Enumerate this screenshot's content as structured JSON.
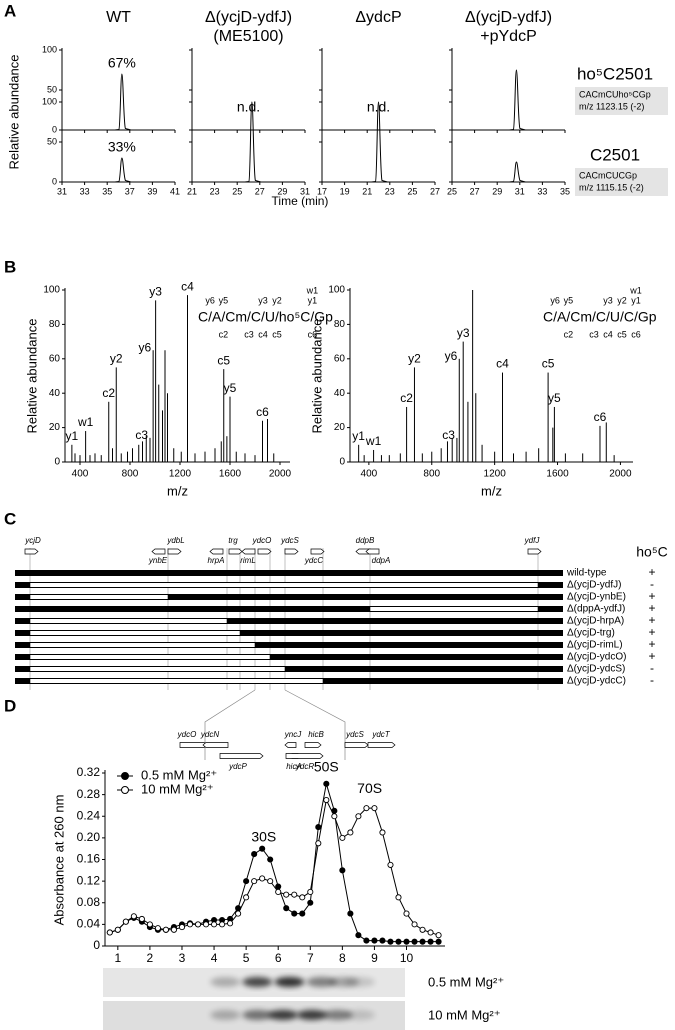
{
  "panel_a": {
    "label": "A",
    "y_label": "Relative abundance",
    "x_label": "Time (min)",
    "ylim": [
      0,
      100
    ],
    "yticks": [
      0,
      50,
      100
    ],
    "columns": [
      {
        "title": [
          "WT"
        ],
        "xlim": [
          31,
          41
        ],
        "xticks": [
          31,
          33,
          35,
          37,
          39,
          41
        ],
        "rows": [
          {
            "peaks": [
              {
                "x": 36.3,
                "y": 70
              }
            ],
            "annotation": "67%"
          },
          {
            "peaks": [
              {
                "x": 36.3,
                "y": 30
              }
            ],
            "annotation": "33%"
          }
        ]
      },
      {
        "title": [
          "Δ(ycjD-ydfJ)",
          "(ME5100)"
        ],
        "xlim": [
          21,
          31
        ],
        "xticks": [
          21,
          23,
          25,
          27,
          29,
          31
        ],
        "rows": [
          {
            "annotation": "n.d."
          },
          {
            "peaks": [
              {
                "x": 26.3,
                "y": 100
              }
            ]
          }
        ]
      },
      {
        "title": [
          "ΔydcP"
        ],
        "xlim": [
          17,
          27
        ],
        "xticks": [
          17,
          19,
          21,
          23,
          25,
          27
        ],
        "rows": [
          {
            "annotation": "n.d."
          },
          {
            "peaks": [
              {
                "x": 22.0,
                "y": 100
              }
            ]
          }
        ]
      },
      {
        "title": [
          "Δ(ycjD-ydfJ)",
          "+pYdcP"
        ],
        "xlim": [
          25,
          35
        ],
        "xticks": [
          25,
          27,
          29,
          31,
          33,
          35
        ],
        "rows": [
          {
            "peaks": [
              {
                "x": 30.7,
                "y": 75
              }
            ]
          },
          {
            "peaks": [
              {
                "x": 30.7,
                "y": 25
              }
            ]
          }
        ]
      }
    ],
    "targets": [
      {
        "name": "ho⁵C2501",
        "sequence": "CACmCUho⁵CGp",
        "mz": "m/z 1123.15 (-2)"
      },
      {
        "name": "C2501",
        "sequence": "CACmCUCGp",
        "mz": "m/z 1115.15 (-2)"
      }
    ]
  },
  "panel_b": {
    "label": "B",
    "y_label": "Relative abundance",
    "x_label": "m/z",
    "xlim": [
      280,
      2080
    ],
    "xticks": [
      400,
      800,
      1200,
      1600,
      2000
    ],
    "ylim": [
      0,
      100
    ],
    "yticks": [
      0,
      20,
      40,
      60,
      80,
      100
    ],
    "spectra": [
      {
        "sequence": "C/A/Cm/C/U/ho⁵C/Gp",
        "top_fragments": [
          "y6",
          "y5",
          "y3",
          "y2",
          "y1",
          "w1"
        ],
        "bottom_fragments": [
          "c2",
          "c3",
          "c4",
          "c5",
          "c6"
        ],
        "peaks": [
          {
            "mz": 335,
            "intensity": 10,
            "label": "y1"
          },
          {
            "mz": 360,
            "intensity": 5
          },
          {
            "mz": 400,
            "intensity": 4
          },
          {
            "mz": 445,
            "intensity": 18,
            "label": "w1"
          },
          {
            "mz": 480,
            "intensity": 4
          },
          {
            "mz": 520,
            "intensity": 5
          },
          {
            "mz": 570,
            "intensity": 4
          },
          {
            "mz": 630,
            "intensity": 35,
            "label": "c2"
          },
          {
            "mz": 660,
            "intensity": 8
          },
          {
            "mz": 690,
            "intensity": 55,
            "label": "y2"
          },
          {
            "mz": 730,
            "intensity": 5
          },
          {
            "mz": 780,
            "intensity": 6
          },
          {
            "mz": 820,
            "intensity": 8
          },
          {
            "mz": 870,
            "intensity": 10
          },
          {
            "mz": 900,
            "intensity": 12
          },
          {
            "mz": 930,
            "intensity": 15
          },
          {
            "mz": 960,
            "intensity": 14,
            "label": "c3"
          },
          {
            "mz": 985,
            "intensity": 65,
            "label": "y6"
          },
          {
            "mz": 1005,
            "intensity": 94,
            "label": "y3"
          },
          {
            "mz": 1030,
            "intensity": 45
          },
          {
            "mz": 1060,
            "intensity": 30
          },
          {
            "mz": 1080,
            "intensity": 65
          },
          {
            "mz": 1100,
            "intensity": 40
          },
          {
            "mz": 1150,
            "intensity": 8
          },
          {
            "mz": 1210,
            "intensity": 6
          },
          {
            "mz": 1260,
            "intensity": 97,
            "label": "c4"
          },
          {
            "mz": 1320,
            "intensity": 5
          },
          {
            "mz": 1400,
            "intensity": 6
          },
          {
            "mz": 1480,
            "intensity": 8
          },
          {
            "mz": 1530,
            "intensity": 12
          },
          {
            "mz": 1550,
            "intensity": 54,
            "label": "c5"
          },
          {
            "mz": 1575,
            "intensity": 15
          },
          {
            "mz": 1600,
            "intensity": 38,
            "label": "y5"
          },
          {
            "mz": 1650,
            "intensity": 6
          },
          {
            "mz": 1720,
            "intensity": 5
          },
          {
            "mz": 1800,
            "intensity": 4
          },
          {
            "mz": 1860,
            "intensity": 24,
            "label": "c6"
          },
          {
            "mz": 1900,
            "intensity": 25
          },
          {
            "mz": 1950,
            "intensity": 5
          }
        ]
      },
      {
        "sequence": "C/A/Cm/C/U/C/Gp",
        "top_fragments": [
          "y6",
          "y5",
          "y3",
          "y2",
          "y1",
          "w1"
        ],
        "bottom_fragments": [
          "c2",
          "c3",
          "c4",
          "c5",
          "c6"
        ],
        "peaks": [
          {
            "mz": 335,
            "intensity": 10,
            "label": "y1"
          },
          {
            "mz": 370,
            "intensity": 4
          },
          {
            "mz": 430,
            "intensity": 7,
            "label": "w1"
          },
          {
            "mz": 480,
            "intensity": 4
          },
          {
            "mz": 530,
            "intensity": 4
          },
          {
            "mz": 600,
            "intensity": 5
          },
          {
            "mz": 640,
            "intensity": 32,
            "label": "c2"
          },
          {
            "mz": 690,
            "intensity": 55,
            "label": "y2"
          },
          {
            "mz": 740,
            "intensity": 5
          },
          {
            "mz": 800,
            "intensity": 6
          },
          {
            "mz": 860,
            "intensity": 8
          },
          {
            "mz": 900,
            "intensity": 12
          },
          {
            "mz": 930,
            "intensity": 14
          },
          {
            "mz": 960,
            "intensity": 14,
            "label": "c3"
          },
          {
            "mz": 975,
            "intensity": 60,
            "label": "y6"
          },
          {
            "mz": 1000,
            "intensity": 70,
            "label": "y3"
          },
          {
            "mz": 1030,
            "intensity": 35
          },
          {
            "mz": 1060,
            "intensity": 100
          },
          {
            "mz": 1080,
            "intensity": 40
          },
          {
            "mz": 1120,
            "intensity": 10
          },
          {
            "mz": 1200,
            "intensity": 6
          },
          {
            "mz": 1250,
            "intensity": 52,
            "label": "c4"
          },
          {
            "mz": 1320,
            "intensity": 5
          },
          {
            "mz": 1400,
            "intensity": 6
          },
          {
            "mz": 1480,
            "intensity": 8
          },
          {
            "mz": 1540,
            "intensity": 52,
            "label": "c5"
          },
          {
            "mz": 1570,
            "intensity": 20
          },
          {
            "mz": 1580,
            "intensity": 32,
            "label": "y5"
          },
          {
            "mz": 1650,
            "intensity": 5
          },
          {
            "mz": 1760,
            "intensity": 5
          },
          {
            "mz": 1870,
            "intensity": 21,
            "label": "c6"
          },
          {
            "mz": 1910,
            "intensity": 23
          },
          {
            "mz": 1960,
            "intensity": 4
          }
        ]
      }
    ]
  },
  "panel_c": {
    "label": "C",
    "genes": [
      "ycjD",
      "ynbE",
      "ydbL",
      "hrpA",
      "trg",
      "rimL",
      "ydcO",
      "ydcS",
      "ydcC",
      "ddpB",
      "ddpA",
      "ydfJ"
    ],
    "phenotype_header": "ho⁵C",
    "strains": [
      {
        "name": "wild-type",
        "ho5C": "+"
      },
      {
        "name": "Δ(ycjD-ydfJ)",
        "ho5C": "-"
      },
      {
        "name": "Δ(ycjD-ynbE)",
        "ho5C": "+"
      },
      {
        "name": "Δ(dppA-ydfJ)",
        "ho5C": "+"
      },
      {
        "name": "Δ(ycjD-hrpA)",
        "ho5C": "+"
      },
      {
        "name": "Δ(ycjD-trg)",
        "ho5C": "+"
      },
      {
        "name": "Δ(ycjD-rimL)",
        "ho5C": "+"
      },
      {
        "name": "Δ(ycjD-ydcO)",
        "ho5C": "+"
      },
      {
        "name": "Δ(ycjD-ydcS)",
        "ho5C": "-"
      },
      {
        "name": "Δ(ycjD-ydcC)",
        "ho5C": "-"
      }
    ],
    "zoom_genes": [
      "ydcO",
      "ydcN",
      "yncJ",
      "hicB",
      "ydcS",
      "ydcT",
      "ydcP",
      "hicA",
      "ydcR"
    ]
  },
  "panel_d": {
    "label": "D",
    "type": "line",
    "y_label": "Absorbance at 260 nm",
    "xlim": [
      0.6,
      11.2
    ],
    "ylim": [
      0,
      0.32
    ],
    "yticks": [
      0,
      0.04,
      0.08,
      0.12,
      0.16,
      {
        "value": 0.2,
        "label": "0.20"
      },
      0.24,
      0.28,
      0.32
    ],
    "xticks": [
      1,
      2,
      3,
      4,
      5,
      6,
      7,
      8,
      9,
      10
    ],
    "x": [
      0.75,
      1,
      1.25,
      1.5,
      1.75,
      2,
      2.25,
      2.5,
      2.75,
      3,
      3.25,
      3.5,
      3.75,
      4,
      4.25,
      4.5,
      4.75,
      5,
      5.25,
      5.5,
      5.75,
      6,
      6.25,
      6.5,
      6.75,
      7,
      7.25,
      7.5,
      7.75,
      8,
      8.25,
      8.5,
      8.75,
      9,
      9.25,
      9.5,
      9.75,
      10,
      10.25,
      10.5,
      10.75,
      11
    ],
    "series": [
      {
        "name": "0.5 mM Mg²⁺",
        "color": "#000000",
        "marker_fill": "#000000",
        "values": [
          0.025,
          0.03,
          0.045,
          0.052,
          0.045,
          0.035,
          0.03,
          0.03,
          0.035,
          0.04,
          0.042,
          0.04,
          0.045,
          0.048,
          0.048,
          0.05,
          0.07,
          0.12,
          0.17,
          0.18,
          0.16,
          0.11,
          0.07,
          0.06,
          0.06,
          0.08,
          0.22,
          0.3,
          0.25,
          0.14,
          0.06,
          0.02,
          0.01,
          0.01,
          0.01,
          0.008,
          0.008,
          0.008,
          0.008,
          0.008,
          0.008,
          0.008
        ]
      },
      {
        "name": "10 mM Mg²⁺",
        "color": "#000000",
        "marker_fill": "#ffffff",
        "values": [
          0.025,
          0.03,
          0.045,
          0.055,
          0.05,
          0.04,
          0.033,
          0.03,
          0.03,
          0.035,
          0.04,
          0.04,
          0.04,
          0.04,
          0.04,
          0.042,
          0.06,
          0.09,
          0.12,
          0.125,
          0.12,
          0.1,
          0.095,
          0.095,
          0.09,
          0.1,
          0.19,
          0.27,
          0.24,
          0.2,
          0.21,
          0.24,
          0.255,
          0.255,
          0.21,
          0.15,
          0.09,
          0.06,
          0.04,
          0.03,
          0.025,
          0.02
        ]
      }
    ],
    "annotations": [
      "30S",
      "50S",
      "70S"
    ],
    "gel_lanes": [
      "0.5 mM Mg²⁺",
      "10 mM Mg²⁺"
    ]
  }
}
